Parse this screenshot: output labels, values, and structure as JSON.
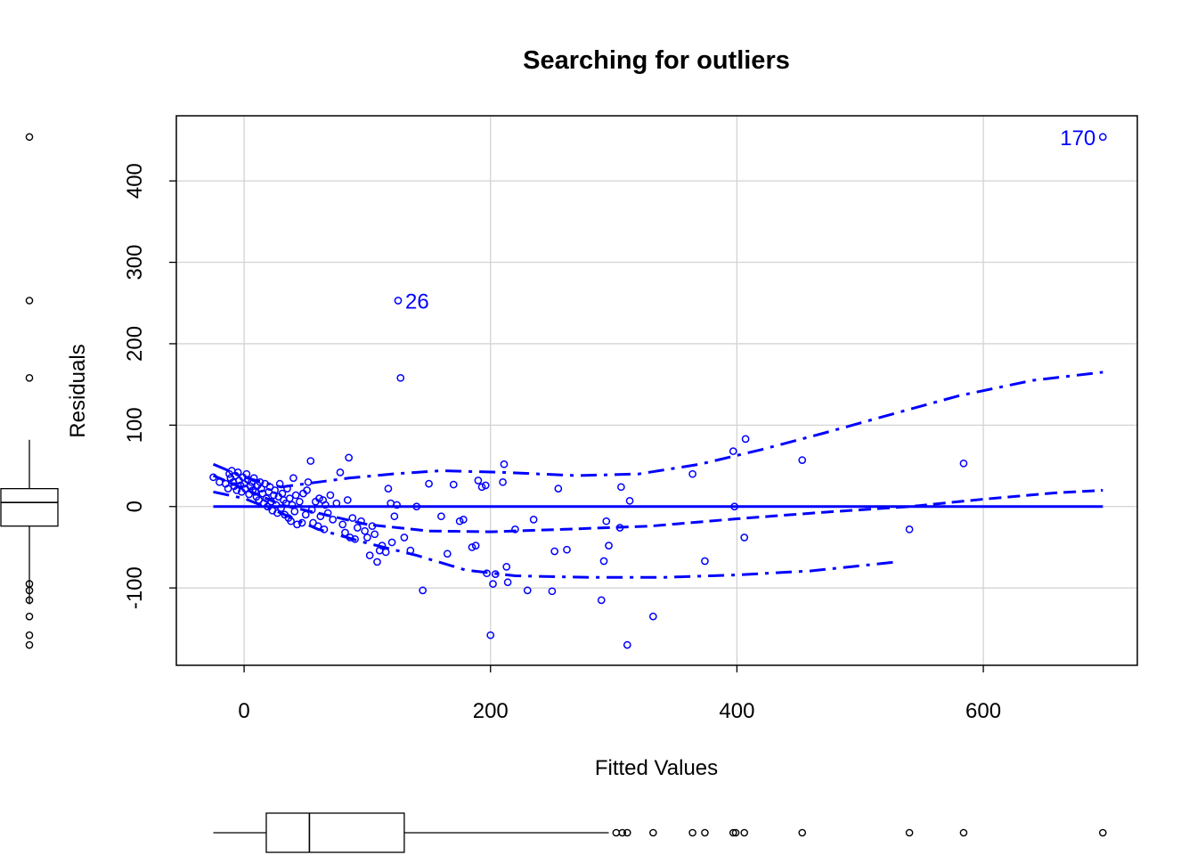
{
  "chart_data": {
    "type": "scatter",
    "title": "Searching for outliers",
    "xlabel": "Fitted Values",
    "ylabel": "Residuals",
    "xlim": [
      -55,
      725
    ],
    "ylim": [
      -195,
      480
    ],
    "xticks": [
      0,
      200,
      400,
      600
    ],
    "yticks": [
      -100,
      0,
      100,
      200,
      300,
      400
    ],
    "grid": true,
    "point_color": "#0000ff",
    "points": [
      [
        -25,
        36
      ],
      [
        -20,
        30
      ],
      [
        -15,
        28
      ],
      [
        -13,
        22
      ],
      [
        -12,
        40
      ],
      [
        -11,
        35
      ],
      [
        -10,
        44
      ],
      [
        -9,
        30
      ],
      [
        -8,
        25
      ],
      [
        -7,
        38
      ],
      [
        -6,
        20
      ],
      [
        -5,
        42
      ],
      [
        -4,
        32
      ],
      [
        -3,
        26
      ],
      [
        -2,
        18
      ],
      [
        -1,
        36
      ],
      [
        0,
        28
      ],
      [
        1,
        22
      ],
      [
        2,
        40
      ],
      [
        3,
        33
      ],
      [
        4,
        15
      ],
      [
        5,
        25
      ],
      [
        6,
        30
      ],
      [
        7,
        20
      ],
      [
        8,
        35
      ],
      [
        9,
        18
      ],
      [
        10,
        12
      ],
      [
        11,
        26
      ],
      [
        12,
        8
      ],
      [
        13,
        30
      ],
      [
        14,
        22
      ],
      [
        15,
        16
      ],
      [
        16,
        4
      ],
      [
        17,
        28
      ],
      [
        18,
        10
      ],
      [
        19,
        0
      ],
      [
        20,
        18
      ],
      [
        21,
        24
      ],
      [
        22,
        6
      ],
      [
        23,
        -5
      ],
      [
        24,
        14
      ],
      [
        25,
        20
      ],
      [
        26,
        2
      ],
      [
        27,
        -8
      ],
      [
        28,
        12
      ],
      [
        29,
        28
      ],
      [
        30,
        -2
      ],
      [
        31,
        16
      ],
      [
        32,
        8
      ],
      [
        33,
        -10
      ],
      [
        34,
        4
      ],
      [
        35,
        22
      ],
      [
        36,
        -14
      ],
      [
        37,
        10
      ],
      [
        38,
        -18
      ],
      [
        39,
        2
      ],
      [
        40,
        35
      ],
      [
        41,
        -6
      ],
      [
        42,
        14
      ],
      [
        43,
        -22
      ],
      [
        45,
        6
      ],
      [
        47,
        -20
      ],
      [
        48,
        16
      ],
      [
        50,
        -10
      ],
      [
        51,
        20
      ],
      [
        52,
        30
      ],
      [
        54,
        56
      ],
      [
        55,
        -4
      ],
      [
        56,
        -20
      ],
      [
        58,
        6
      ],
      [
        60,
        -24
      ],
      [
        61,
        10
      ],
      [
        62,
        -12
      ],
      [
        64,
        8
      ],
      [
        65,
        -28
      ],
      [
        66,
        2
      ],
      [
        68,
        -8
      ],
      [
        70,
        14
      ],
      [
        72,
        -16
      ],
      [
        75,
        4
      ],
      [
        78,
        42
      ],
      [
        80,
        -22
      ],
      [
        82,
        -32
      ],
      [
        84,
        8
      ],
      [
        85,
        60
      ],
      [
        86,
        -38
      ],
      [
        88,
        -14
      ],
      [
        90,
        -40
      ],
      [
        92,
        -26
      ],
      [
        95,
        -18
      ],
      [
        98,
        -30
      ],
      [
        100,
        -38
      ],
      [
        102,
        -60
      ],
      [
        104,
        -24
      ],
      [
        106,
        -34
      ],
      [
        108,
        -68
      ],
      [
        110,
        -54
      ],
      [
        112,
        -48
      ],
      [
        115,
        -56
      ],
      [
        117,
        22
      ],
      [
        119,
        4
      ],
      [
        120,
        -44
      ],
      [
        122,
        -12
      ],
      [
        124,
        2
      ],
      [
        125,
        253
      ],
      [
        127,
        158
      ],
      [
        130,
        -38
      ],
      [
        135,
        -54
      ],
      [
        140,
        0
      ],
      [
        145,
        -103
      ],
      [
        150,
        28
      ],
      [
        160,
        -12
      ],
      [
        165,
        -58
      ],
      [
        170,
        27
      ],
      [
        175,
        -18
      ],
      [
        178,
        -16
      ],
      [
        185,
        -50
      ],
      [
        188,
        -48
      ],
      [
        190,
        32
      ],
      [
        193,
        24
      ],
      [
        196,
        26
      ],
      [
        197,
        -82
      ],
      [
        200,
        -158
      ],
      [
        202,
        -95
      ],
      [
        204,
        -83
      ],
      [
        210,
        30
      ],
      [
        211,
        52
      ],
      [
        213,
        -74
      ],
      [
        214,
        -93
      ],
      [
        220,
        -28
      ],
      [
        230,
        -103
      ],
      [
        235,
        -16
      ],
      [
        250,
        -104
      ],
      [
        252,
        -55
      ],
      [
        255,
        22
      ],
      [
        262,
        -53
      ],
      [
        290,
        -115
      ],
      [
        292,
        -67
      ],
      [
        294,
        -18
      ],
      [
        296,
        -48
      ],
      [
        305,
        -26
      ],
      [
        306,
        24
      ],
      [
        311,
        -170
      ],
      [
        313,
        7
      ],
      [
        332,
        -135
      ],
      [
        364,
        40
      ],
      [
        374,
        -67
      ],
      [
        397,
        68
      ],
      [
        398,
        0
      ],
      [
        406,
        -38
      ],
      [
        407,
        83
      ],
      [
        453,
        57
      ],
      [
        540,
        -28
      ],
      [
        584,
        53
      ],
      [
        697,
        454
      ]
    ],
    "labeled_points": [
      {
        "label": "26",
        "x": 125,
        "y": 253
      },
      {
        "label": "170",
        "x": 697,
        "y": 454
      }
    ],
    "lines": [
      {
        "name": "zero",
        "style": "solid",
        "points": [
          [
            -25,
            0
          ],
          [
            697,
            0
          ]
        ]
      },
      {
        "name": "smooth",
        "style": "dashed",
        "points": [
          [
            -25,
            38
          ],
          [
            0,
            22
          ],
          [
            30,
            2
          ],
          [
            60,
            -8
          ],
          [
            100,
            -22
          ],
          [
            150,
            -30
          ],
          [
            200,
            -31
          ],
          [
            260,
            -28
          ],
          [
            330,
            -24
          ],
          [
            400,
            -15
          ],
          [
            470,
            -7
          ],
          [
            540,
            0
          ],
          [
            600,
            9
          ],
          [
            660,
            17
          ],
          [
            697,
            20
          ]
        ]
      },
      {
        "name": "upper",
        "style": "dashdot",
        "points": [
          [
            -25,
            52
          ],
          [
            0,
            36
          ],
          [
            30,
            24
          ],
          [
            60,
            30
          ],
          [
            85,
            35
          ],
          [
            120,
            40
          ],
          [
            160,
            44
          ],
          [
            210,
            42
          ],
          [
            270,
            38
          ],
          [
            320,
            40
          ],
          [
            370,
            52
          ],
          [
            420,
            70
          ],
          [
            470,
            90
          ],
          [
            520,
            111
          ],
          [
            580,
            136
          ],
          [
            640,
            155
          ],
          [
            697,
            165
          ]
        ]
      },
      {
        "name": "lower",
        "style": "dashdot",
        "points": [
          [
            -25,
            18
          ],
          [
            0,
            10
          ],
          [
            30,
            -8
          ],
          [
            60,
            -28
          ],
          [
            100,
            -45
          ],
          [
            140,
            -60
          ],
          [
            180,
            -78
          ],
          [
            220,
            -85
          ],
          [
            280,
            -87
          ],
          [
            340,
            -87
          ],
          [
            400,
            -84
          ],
          [
            460,
            -79
          ],
          [
            530,
            -68
          ]
        ]
      }
    ],
    "marginal_y_boxplot": {
      "min": -120,
      "q1": -24,
      "median": 5,
      "q3": 22,
      "max": 82,
      "outliers": [
        454,
        253,
        158,
        -95,
        -103,
        -115,
        -135,
        -158,
        -170
      ]
    },
    "marginal_x_boxplot": {
      "min": -25,
      "q1": 18,
      "median": 53,
      "q3": 130,
      "max": 296,
      "outliers": [
        302,
        307,
        311,
        332,
        364,
        374,
        397,
        399,
        406,
        453,
        540,
        584,
        697
      ]
    }
  }
}
